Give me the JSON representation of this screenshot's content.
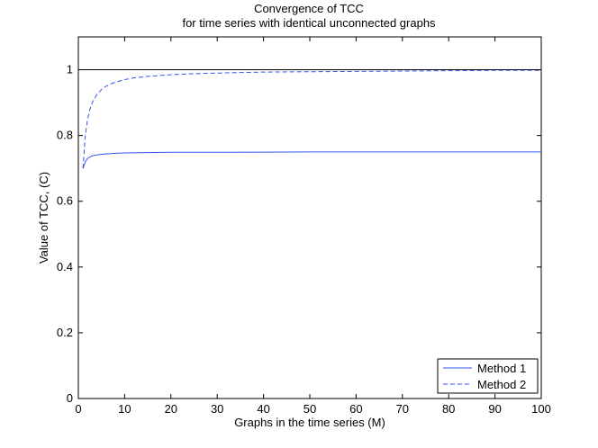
{
  "chart_data": {
    "type": "line",
    "title": "Convergence of TCC",
    "subtitle": "for time series with identical unconnected graphs",
    "xlabel": "Graphs in the time series (M)",
    "ylabel": "Value of TCC, (C)",
    "xlim": [
      0,
      100
    ],
    "ylim": [
      0,
      1.1
    ],
    "xticks": [
      0,
      10,
      20,
      30,
      40,
      50,
      60,
      70,
      80,
      90,
      100
    ],
    "yticks": [
      0,
      0.2,
      0.4,
      0.6,
      0.8,
      1
    ],
    "xtick_labels": [
      "0",
      "10",
      "20",
      "30",
      "40",
      "50",
      "60",
      "70",
      "80",
      "90",
      "100"
    ],
    "ytick_labels": [
      "0",
      "0.2",
      "0.4",
      "0.6",
      "0.8",
      "1"
    ],
    "grid": false,
    "legend_position": "bottom-right",
    "reference_line": {
      "y": 1,
      "color": "#000000"
    },
    "series": [
      {
        "name": "Method 1",
        "style": "solid",
        "color": "#3355ee",
        "x": [
          1,
          1.5,
          2,
          2.5,
          3,
          4,
          5,
          6,
          8,
          10,
          15,
          20,
          30,
          40,
          50,
          60,
          70,
          80,
          90,
          100
        ],
        "y": [
          0.7,
          0.72,
          0.73,
          0.735,
          0.738,
          0.741,
          0.743,
          0.744,
          0.746,
          0.747,
          0.748,
          0.749,
          0.749,
          0.7495,
          0.75,
          0.75,
          0.75,
          0.75,
          0.75,
          0.75
        ]
      },
      {
        "name": "Method 2",
        "style": "dashed",
        "color": "#3355ee",
        "x": [
          1,
          1.5,
          2,
          2.5,
          3,
          4,
          5,
          6,
          7,
          8,
          10,
          12,
          15,
          20,
          25,
          30,
          40,
          50,
          60,
          70,
          80,
          90,
          100
        ],
        "y": [
          0.7,
          0.8,
          0.85,
          0.88,
          0.9,
          0.925,
          0.94,
          0.95,
          0.957,
          0.962,
          0.97,
          0.975,
          0.98,
          0.985,
          0.988,
          0.99,
          0.993,
          0.994,
          0.995,
          0.996,
          0.997,
          0.998,
          0.998
        ]
      }
    ]
  }
}
